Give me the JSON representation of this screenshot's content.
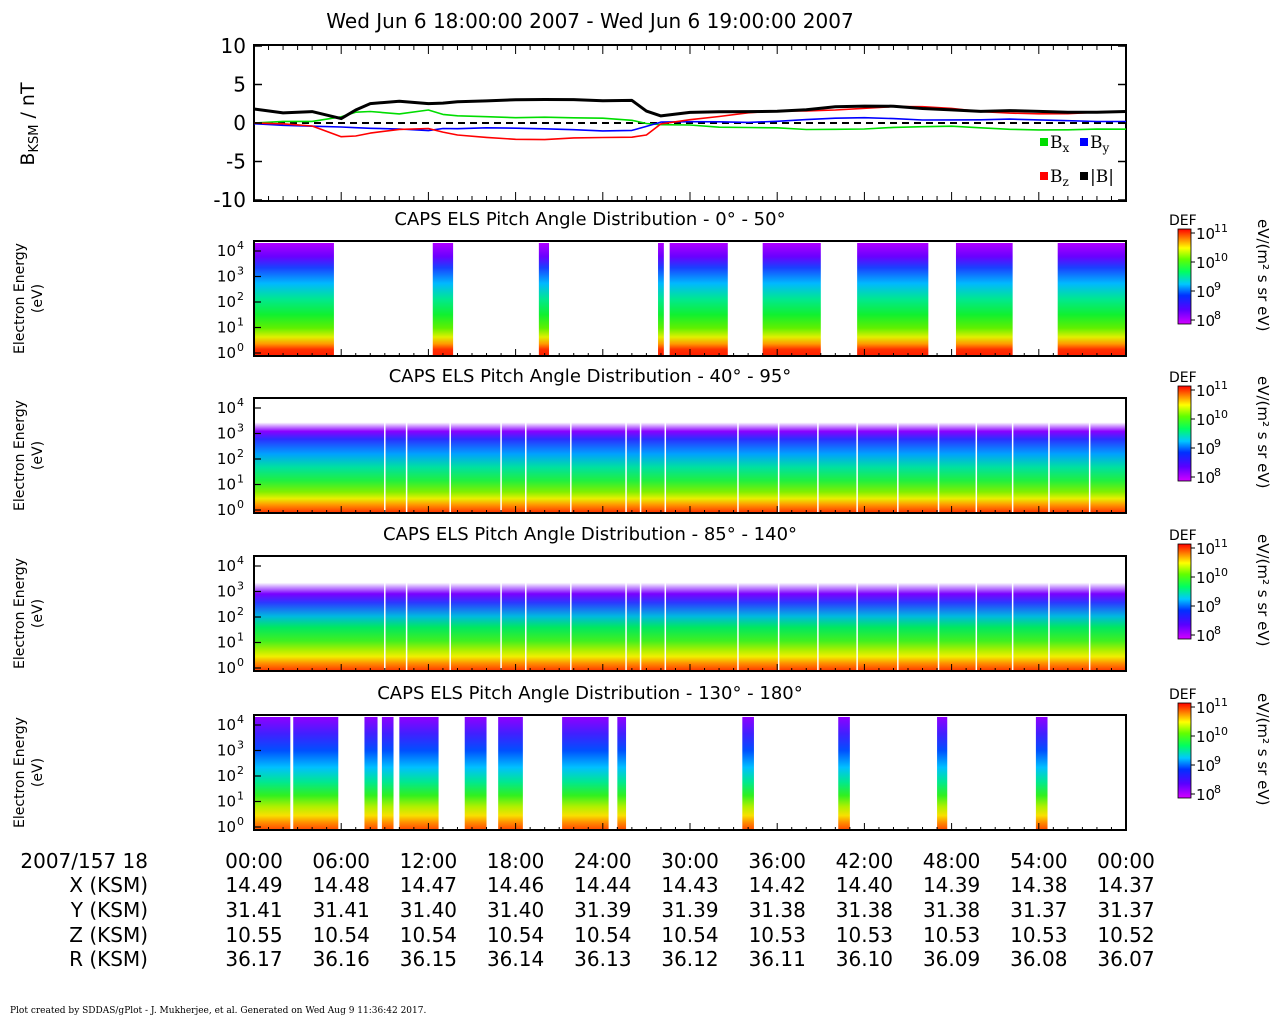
{
  "title": "Wed Jun 6 18:00:00 2007 - Wed Jun 6 19:00:00 2007",
  "footer": "Plot created by SDDAS/gPlot - J. Mukherjee, et al.  Generated on Wed Aug 9 11:36:42 2017.",
  "colors": {
    "bx": "#00dd00",
    "by": "#0000ff",
    "bz": "#ff0000",
    "bmag": "#000000"
  },
  "mag_panel": {
    "ylabel_main": "B",
    "ylabel_sub": "KSM",
    "ylabel_unit": " / nT",
    "ylim": [
      -10,
      10
    ],
    "ytick_labels": [
      "10",
      "5",
      "0",
      "-5",
      "-10"
    ],
    "ytick_values": [
      10,
      5,
      0,
      -5,
      -10
    ],
    "legend": [
      {
        "key": "bx",
        "main": "B",
        "sub": "x"
      },
      {
        "key": "by",
        "main": "B",
        "sub": "y"
      },
      {
        "key": "bz",
        "main": "B",
        "sub": "z"
      },
      {
        "key": "bmag",
        "main": "|B|",
        "sub": ""
      }
    ]
  },
  "spectrogram_panels": [
    {
      "title": "CAPS ELS Pitch Angle Distribution - 0° - 50°"
    },
    {
      "title": "CAPS ELS Pitch Angle Distribution - 40° - 95°"
    },
    {
      "title": "CAPS ELS Pitch Angle Distribution - 85° - 140°"
    },
    {
      "title": "CAPS ELS Pitch Angle Distribution - 130° - 180°"
    }
  ],
  "spectrogram_ylabel": [
    "Electron Energy",
    "(eV)"
  ],
  "energy_ticks": [
    {
      "exp": "4",
      "value": 10000
    },
    {
      "exp": "3",
      "value": 1000
    },
    {
      "exp": "2",
      "value": 100
    },
    {
      "exp": "1",
      "value": 10
    },
    {
      "exp": "0",
      "value": 1
    }
  ],
  "colorbar": {
    "label": "DEF",
    "unit": "eV/(m² s sr eV)",
    "ticks": [
      {
        "exp": "11"
      },
      {
        "exp": "10"
      },
      {
        "exp": "9"
      },
      {
        "exp": "8"
      }
    ]
  },
  "ephemeris": {
    "header": "2007/157 18",
    "times": [
      "00:00",
      "06:00",
      "12:00",
      "18:00",
      "24:00",
      "30:00",
      "36:00",
      "42:00",
      "48:00",
      "54:00",
      "00:00"
    ],
    "rows": [
      {
        "label": "X (KSM)",
        "values": [
          "14.49",
          "14.48",
          "14.47",
          "14.46",
          "14.44",
          "14.43",
          "14.42",
          "14.40",
          "14.39",
          "14.38",
          "14.37"
        ]
      },
      {
        "label": "Y (KSM)",
        "values": [
          "31.41",
          "31.41",
          "31.40",
          "31.40",
          "31.39",
          "31.39",
          "31.38",
          "31.38",
          "31.38",
          "31.37",
          "31.37"
        ]
      },
      {
        "label": "Z (KSM)",
        "values": [
          "10.55",
          "10.54",
          "10.54",
          "10.54",
          "10.54",
          "10.54",
          "10.53",
          "10.53",
          "10.53",
          "10.53",
          "10.52"
        ]
      },
      {
        "label": "R (KSM)",
        "values": [
          "36.17",
          "36.16",
          "36.15",
          "36.14",
          "36.13",
          "36.12",
          "36.11",
          "36.10",
          "36.09",
          "36.08",
          "36.07"
        ]
      }
    ]
  },
  "chart_data": [
    {
      "type": "line",
      "xlabel": "",
      "ylabel": "BKSM / nT",
      "ylim": [
        -10,
        10
      ],
      "x_minutes": [
        0,
        2,
        4,
        6,
        7,
        8,
        10,
        12,
        13,
        14,
        16,
        18,
        20,
        22,
        24,
        26,
        27,
        28,
        30,
        32,
        34,
        36,
        38,
        40,
        42,
        44,
        46,
        48,
        50,
        52,
        54,
        56,
        58,
        60
      ],
      "series": [
        {
          "name": "Bx",
          "values": [
            0.0,
            0.1,
            0.1,
            0.8,
            1.5,
            1.6,
            1.2,
            1.6,
            1.0,
            0.9,
            0.9,
            0.8,
            0.8,
            0.6,
            0.5,
            0.3,
            0.0,
            -0.1,
            -0.2,
            -0.6,
            -0.7,
            -0.7,
            -0.8,
            -0.7,
            -0.7,
            -0.6,
            -0.6,
            -0.5,
            -0.6,
            -0.7,
            -0.8,
            -0.9,
            -0.9,
            -0.9
          ]
        },
        {
          "name": "By",
          "values": [
            -0.1,
            -0.2,
            -0.3,
            -0.5,
            -0.7,
            -0.8,
            -0.8,
            -0.9,
            -0.6,
            -0.7,
            -0.7,
            -0.8,
            -0.8,
            -0.8,
            -0.9,
            -0.9,
            -0.5,
            0.0,
            0.1,
            0.2,
            0.2,
            0.3,
            0.4,
            0.5,
            0.6,
            0.6,
            0.5,
            0.5,
            0.4,
            0.4,
            0.3,
            0.3,
            0.3,
            0.3
          ]
        },
        {
          "name": "Bz",
          "values": [
            0.0,
            -0.2,
            -0.5,
            -1.8,
            -1.6,
            -1.2,
            -0.8,
            -0.8,
            -1.3,
            -1.6,
            -1.8,
            -2.0,
            -2.1,
            -2.0,
            -2.0,
            -1.9,
            -1.5,
            0.0,
            0.5,
            0.8,
            1.2,
            1.5,
            1.6,
            1.8,
            2.0,
            2.1,
            2.0,
            1.8,
            1.5,
            1.4,
            1.3,
            1.2,
            1.3,
            1.4
          ]
        },
        {
          "name": "|B|",
          "values": [
            1.8,
            1.4,
            1.6,
            0.6,
            1.6,
            2.4,
            2.8,
            2.6,
            2.7,
            2.8,
            2.8,
            2.9,
            3.0,
            3.1,
            3.0,
            3.0,
            1.5,
            0.8,
            1.3,
            1.5,
            1.6,
            1.6,
            1.7,
            2.0,
            2.1,
            2.2,
            2.0,
            1.8,
            1.5,
            1.5,
            1.4,
            1.4,
            1.5,
            1.6
          ]
        }
      ]
    },
    {
      "type": "heatmap",
      "title": "CAPS ELS Pitch Angle Distribution - 0° - 50°",
      "ylabel": "Electron Energy (eV)",
      "coverage_minutes": [
        [
          0.0,
          5.5
        ],
        [
          12.3,
          13.7
        ],
        [
          19.6,
          20.3
        ],
        [
          27.8,
          28.2
        ],
        [
          28.6,
          32.6
        ],
        [
          35.0,
          39.0
        ],
        [
          41.5,
          46.4
        ],
        [
          48.3,
          52.2
        ],
        [
          55.3,
          60.0
        ]
      ]
    },
    {
      "type": "heatmap",
      "title": "CAPS ELS Pitch Angle Distribution - 40° - 95°",
      "ylabel": "Electron Energy (eV)",
      "coverage_minutes": [
        [
          0.0,
          60.0
        ]
      ]
    },
    {
      "type": "heatmap",
      "title": "CAPS ELS Pitch Angle Distribution - 85° - 140°",
      "ylabel": "Electron Energy (eV)",
      "coverage_minutes": [
        [
          0.0,
          60.0
        ]
      ]
    },
    {
      "type": "heatmap",
      "title": "CAPS ELS Pitch Angle Distribution - 130° - 180°",
      "ylabel": "Electron Energy (eV)",
      "coverage_minutes": [
        [
          0.0,
          2.5
        ],
        [
          2.7,
          5.8
        ],
        [
          7.6,
          8.5
        ],
        [
          8.8,
          9.6
        ],
        [
          10.0,
          12.7
        ],
        [
          14.5,
          16.0
        ],
        [
          16.8,
          18.5
        ],
        [
          21.2,
          24.4
        ],
        [
          25.0,
          25.6
        ],
        [
          33.6,
          34.4
        ],
        [
          40.2,
          41.0
        ],
        [
          47.0,
          47.7
        ],
        [
          53.8,
          54.6
        ]
      ]
    }
  ]
}
